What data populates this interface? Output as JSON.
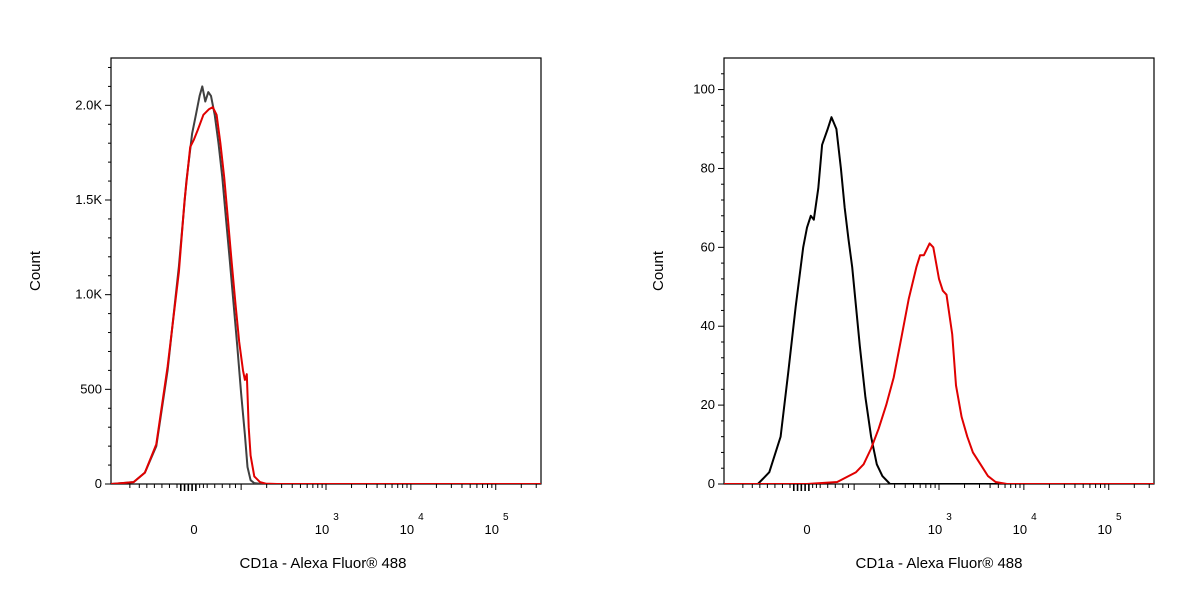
{
  "chart_data": [
    {
      "type": "line",
      "title": "",
      "xlabel": "CD1a - Alexa Fluor® 488",
      "ylabel": "Count",
      "x_scale": "biexponential",
      "x_ticks": [
        {
          "value": 0,
          "base": "0",
          "exp": ""
        },
        {
          "value": 1000,
          "base": "10",
          "exp": "3"
        },
        {
          "value": 10000,
          "base": "10",
          "exp": "4"
        },
        {
          "value": 100000,
          "base": "10",
          "exp": "5"
        }
      ],
      "y_ticks": [
        {
          "value": 0,
          "label": "0"
        },
        {
          "value": 500,
          "label": "500"
        },
        {
          "value": 1000,
          "label": "1.0K"
        },
        {
          "value": 1500,
          "label": "1.5K"
        },
        {
          "value": 2000,
          "label": "2.0K"
        }
      ],
      "ylim": [
        0,
        2250
      ],
      "grid": false,
      "series": [
        {
          "color": "#404040",
          "points": [
            [
              -2.2,
              0
            ],
            [
              -1.6,
              10
            ],
            [
              -1.3,
              60
            ],
            [
              -1.0,
              200
            ],
            [
              -0.7,
              600
            ],
            [
              -0.4,
              1150
            ],
            [
              -0.2,
              1600
            ],
            [
              -0.05,
              1850
            ],
            [
              0.05,
              1950
            ],
            [
              0.15,
              2050
            ],
            [
              0.22,
              2100
            ],
            [
              0.3,
              2020
            ],
            [
              0.38,
              2070
            ],
            [
              0.45,
              2050
            ],
            [
              0.55,
              1950
            ],
            [
              0.65,
              1800
            ],
            [
              0.75,
              1620
            ],
            [
              0.85,
              1400
            ],
            [
              0.95,
              1180
            ],
            [
              1.05,
              950
            ],
            [
              1.15,
              720
            ],
            [
              1.25,
              480
            ],
            [
              1.35,
              260
            ],
            [
              1.42,
              90
            ],
            [
              1.5,
              20
            ],
            [
              1.6,
              5
            ],
            [
              1.8,
              0
            ],
            [
              9.2,
              0
            ]
          ]
        },
        {
          "color": "#e00000",
          "points": [
            [
              -2.2,
              0
            ],
            [
              -1.6,
              10
            ],
            [
              -1.3,
              60
            ],
            [
              -1.0,
              210
            ],
            [
              -0.7,
              620
            ],
            [
              -0.4,
              1120
            ],
            [
              -0.25,
              1500
            ],
            [
              -0.1,
              1780
            ],
            [
              0.0,
              1820
            ],
            [
              0.1,
              1870
            ],
            [
              0.25,
              1950
            ],
            [
              0.4,
              1980
            ],
            [
              0.5,
              1990
            ],
            [
              0.6,
              1950
            ],
            [
              0.7,
              1800
            ],
            [
              0.8,
              1620
            ],
            [
              0.9,
              1400
            ],
            [
              1.0,
              1170
            ],
            [
              1.1,
              950
            ],
            [
              1.2,
              750
            ],
            [
              1.3,
              600
            ],
            [
              1.35,
              550
            ],
            [
              1.4,
              580
            ],
            [
              1.45,
              300
            ],
            [
              1.5,
              150
            ],
            [
              1.6,
              40
            ],
            [
              1.75,
              10
            ],
            [
              1.9,
              2
            ],
            [
              2.2,
              0
            ],
            [
              9.2,
              0
            ]
          ]
        }
      ]
    },
    {
      "type": "line",
      "title": "",
      "xlabel": "CD1a - Alexa Fluor® 488",
      "ylabel": "Count",
      "x_scale": "biexponential",
      "x_ticks": [
        {
          "value": 0,
          "base": "0",
          "exp": ""
        },
        {
          "value": 1000,
          "base": "10",
          "exp": "3"
        },
        {
          "value": 10000,
          "base": "10",
          "exp": "4"
        },
        {
          "value": 100000,
          "base": "10",
          "exp": "5"
        }
      ],
      "y_ticks": [
        {
          "value": 0,
          "label": "0"
        },
        {
          "value": 20,
          "label": "20"
        },
        {
          "value": 40,
          "label": "40"
        },
        {
          "value": 60,
          "label": "60"
        },
        {
          "value": 80,
          "label": "80"
        },
        {
          "value": 100,
          "label": "100"
        }
      ],
      "ylim": [
        0,
        108
      ],
      "grid": false,
      "series": [
        {
          "color": "#000000",
          "points": [
            [
              -2.2,
              0
            ],
            [
              -1.3,
              0
            ],
            [
              -1.0,
              3
            ],
            [
              -0.7,
              12
            ],
            [
              -0.5,
              28
            ],
            [
              -0.3,
              45
            ],
            [
              -0.1,
              60
            ],
            [
              0.0,
              65
            ],
            [
              0.1,
              68
            ],
            [
              0.18,
              67
            ],
            [
              0.3,
              75
            ],
            [
              0.4,
              86
            ],
            [
              0.55,
              90
            ],
            [
              0.65,
              93
            ],
            [
              0.78,
              90
            ],
            [
              0.9,
              80
            ],
            [
              1.0,
              70
            ],
            [
              1.1,
              62
            ],
            [
              1.2,
              55
            ],
            [
              1.3,
              45
            ],
            [
              1.4,
              35
            ],
            [
              1.55,
              22
            ],
            [
              1.7,
              12
            ],
            [
              1.85,
              5
            ],
            [
              2.0,
              2
            ],
            [
              2.2,
              0
            ],
            [
              9.2,
              0
            ]
          ]
        },
        {
          "color": "#e00000",
          "points": [
            [
              -2.2,
              0
            ],
            [
              0.0,
              0
            ],
            [
              0.8,
              0.5
            ],
            [
              1.1,
              2
            ],
            [
              1.3,
              3
            ],
            [
              1.5,
              5
            ],
            [
              1.7,
              9
            ],
            [
              1.9,
              14
            ],
            [
              2.1,
              20
            ],
            [
              2.3,
              27
            ],
            [
              2.5,
              37
            ],
            [
              2.7,
              47
            ],
            [
              2.9,
              55
            ],
            [
              3.0,
              58
            ],
            [
              3.1,
              58
            ],
            [
              3.25,
              61
            ],
            [
              3.35,
              60
            ],
            [
              3.5,
              52
            ],
            [
              3.6,
              49
            ],
            [
              3.7,
              48
            ],
            [
              3.85,
              38
            ],
            [
              3.95,
              25
            ],
            [
              4.1,
              17
            ],
            [
              4.25,
              12
            ],
            [
              4.4,
              8
            ],
            [
              4.6,
              5
            ],
            [
              4.8,
              2
            ],
            [
              5.0,
              0.5
            ],
            [
              5.3,
              0
            ],
            [
              9.2,
              0
            ]
          ]
        }
      ]
    }
  ]
}
